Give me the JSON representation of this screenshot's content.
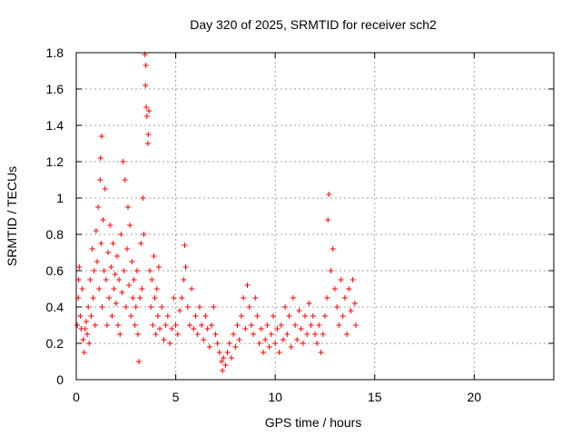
{
  "chart_data": {
    "type": "scatter",
    "title": "Day 320 of 2025, SRMTID for receiver sch2",
    "xlabel": "GPS time / hours",
    "ylabel": "SRMTID / TECUs",
    "xlim": [
      0,
      24
    ],
    "ylim": [
      0,
      1.8
    ],
    "x_ticks": [
      "0",
      "5",
      "10",
      "15",
      "20"
    ],
    "y_ticks": [
      "0",
      "0.2",
      "0.4",
      "0.6",
      "0.8",
      "1",
      "1.2",
      "1.4",
      "1.6",
      "1.8"
    ],
    "grid": true,
    "marker": "+",
    "color": "#ff0000",
    "series": [
      {
        "name": "SRMTID",
        "points": [
          [
            0.05,
            0.3
          ],
          [
            0.1,
            0.45
          ],
          [
            0.12,
            0.55
          ],
          [
            0.15,
            0.62
          ],
          [
            0.2,
            0.35
          ],
          [
            0.25,
            0.28
          ],
          [
            0.3,
            0.5
          ],
          [
            0.35,
            0.22
          ],
          [
            0.4,
            0.15
          ],
          [
            0.45,
            0.28
          ],
          [
            0.5,
            0.32
          ],
          [
            0.55,
            0.25
          ],
          [
            0.6,
            0.4
          ],
          [
            0.65,
            0.2
          ],
          [
            0.7,
            0.55
          ],
          [
            0.75,
            0.35
          ],
          [
            0.8,
            0.72
          ],
          [
            0.85,
            0.45
          ],
          [
            0.9,
            0.6
          ],
          [
            0.95,
            0.3
          ],
          [
            1.0,
            0.82
          ],
          [
            1.05,
            0.65
          ],
          [
            1.1,
            0.95
          ],
          [
            1.15,
            0.5
          ],
          [
            1.2,
            1.1
          ],
          [
            1.22,
            1.22
          ],
          [
            1.25,
            0.75
          ],
          [
            1.28,
            1.34
          ],
          [
            1.3,
            0.4
          ],
          [
            1.35,
            0.88
          ],
          [
            1.4,
            0.6
          ],
          [
            1.45,
            1.05
          ],
          [
            1.5,
            0.55
          ],
          [
            1.55,
            0.3
          ],
          [
            1.6,
            0.7
          ],
          [
            1.65,
            0.45
          ],
          [
            1.7,
            0.85
          ],
          [
            1.75,
            0.62
          ],
          [
            1.8,
            0.35
          ],
          [
            1.85,
            0.75
          ],
          [
            1.9,
            0.5
          ],
          [
            1.95,
            0.58
          ],
          [
            2.0,
            0.42
          ],
          [
            2.05,
            0.68
          ],
          [
            2.1,
            0.3
          ],
          [
            2.15,
            0.55
          ],
          [
            2.2,
            0.25
          ],
          [
            2.25,
            0.8
          ],
          [
            2.3,
            0.48
          ],
          [
            2.35,
            1.2
          ],
          [
            2.4,
            0.6
          ],
          [
            2.45,
            1.1
          ],
          [
            2.5,
            0.4
          ],
          [
            2.55,
            0.72
          ],
          [
            2.6,
            0.95
          ],
          [
            2.65,
            0.52
          ],
          [
            2.7,
            0.85
          ],
          [
            2.75,
            0.35
          ],
          [
            2.8,
            0.65
          ],
          [
            2.85,
            0.45
          ],
          [
            2.9,
            0.55
          ],
          [
            2.95,
            0.3
          ],
          [
            3.0,
            0.4
          ],
          [
            3.05,
            0.6
          ],
          [
            3.1,
            0.25
          ],
          [
            3.15,
            0.1
          ],
          [
            3.2,
            0.45
          ],
          [
            3.25,
            0.75
          ],
          [
            3.3,
            0.5
          ],
          [
            3.35,
            1.0
          ],
          [
            3.4,
            0.8
          ],
          [
            3.45,
            1.79
          ],
          [
            3.48,
            1.62
          ],
          [
            3.5,
            1.73
          ],
          [
            3.52,
            1.5
          ],
          [
            3.55,
            1.45
          ],
          [
            3.6,
            1.3
          ],
          [
            3.62,
            1.35
          ],
          [
            3.65,
            1.48
          ],
          [
            3.7,
            0.6
          ],
          [
            3.75,
            0.4
          ],
          [
            3.8,
            0.55
          ],
          [
            3.85,
            0.3
          ],
          [
            3.9,
            0.68
          ],
          [
            3.95,
            0.45
          ],
          [
            4.0,
            0.25
          ],
          [
            4.05,
            0.5
          ],
          [
            4.1,
            0.35
          ],
          [
            4.15,
            0.62
          ],
          [
            4.2,
            0.28
          ],
          [
            4.3,
            0.4
          ],
          [
            4.4,
            0.22
          ],
          [
            4.5,
            0.3
          ],
          [
            4.6,
            0.35
          ],
          [
            4.7,
            0.2
          ],
          [
            4.8,
            0.28
          ],
          [
            4.9,
            0.45
          ],
          [
            5.0,
            0.3
          ],
          [
            5.1,
            0.25
          ],
          [
            5.2,
            0.38
          ],
          [
            5.3,
            0.45
          ],
          [
            5.4,
            0.55
          ],
          [
            5.45,
            0.74
          ],
          [
            5.5,
            0.62
          ],
          [
            5.6,
            0.4
          ],
          [
            5.7,
            0.3
          ],
          [
            5.8,
            0.5
          ],
          [
            5.9,
            0.28
          ],
          [
            6.0,
            0.35
          ],
          [
            6.1,
            0.25
          ],
          [
            6.2,
            0.4
          ],
          [
            6.3,
            0.3
          ],
          [
            6.4,
            0.22
          ],
          [
            6.5,
            0.35
          ],
          [
            6.6,
            0.28
          ],
          [
            6.7,
            0.18
          ],
          [
            6.8,
            0.3
          ],
          [
            6.9,
            0.4
          ],
          [
            7.0,
            0.25
          ],
          [
            7.1,
            0.2
          ],
          [
            7.2,
            0.15
          ],
          [
            7.3,
            0.1
          ],
          [
            7.35,
            0.05
          ],
          [
            7.4,
            0.12
          ],
          [
            7.5,
            0.08
          ],
          [
            7.6,
            0.15
          ],
          [
            7.7,
            0.2
          ],
          [
            7.8,
            0.12
          ],
          [
            7.9,
            0.25
          ],
          [
            8.0,
            0.18
          ],
          [
            8.1,
            0.3
          ],
          [
            8.2,
            0.22
          ],
          [
            8.3,
            0.35
          ],
          [
            8.4,
            0.45
          ],
          [
            8.5,
            0.28
          ],
          [
            8.6,
            0.52
          ],
          [
            8.7,
            0.4
          ],
          [
            8.8,
            0.3
          ],
          [
            8.9,
            0.25
          ],
          [
            9.0,
            0.45
          ],
          [
            9.1,
            0.35
          ],
          [
            9.2,
            0.2
          ],
          [
            9.3,
            0.28
          ],
          [
            9.4,
            0.15
          ],
          [
            9.5,
            0.22
          ],
          [
            9.6,
            0.3
          ],
          [
            9.7,
            0.18
          ],
          [
            9.8,
            0.25
          ],
          [
            9.9,
            0.35
          ],
          [
            10.0,
            0.2
          ],
          [
            10.1,
            0.28
          ],
          [
            10.2,
            0.15
          ],
          [
            10.3,
            0.3
          ],
          [
            10.4,
            0.22
          ],
          [
            10.5,
            0.4
          ],
          [
            10.6,
            0.25
          ],
          [
            10.7,
            0.35
          ],
          [
            10.8,
            0.18
          ],
          [
            10.9,
            0.45
          ],
          [
            11.0,
            0.3
          ],
          [
            11.1,
            0.22
          ],
          [
            11.2,
            0.38
          ],
          [
            11.3,
            0.28
          ],
          [
            11.4,
            0.2
          ],
          [
            11.5,
            0.35
          ],
          [
            11.6,
            0.25
          ],
          [
            11.7,
            0.42
          ],
          [
            11.8,
            0.3
          ],
          [
            11.9,
            0.35
          ],
          [
            12.0,
            0.25
          ],
          [
            12.1,
            0.2
          ],
          [
            12.2,
            0.3
          ],
          [
            12.3,
            0.15
          ],
          [
            12.4,
            0.25
          ],
          [
            12.5,
            0.35
          ],
          [
            12.6,
            0.45
          ],
          [
            12.65,
            0.88
          ],
          [
            12.7,
            1.02
          ],
          [
            12.8,
            0.6
          ],
          [
            12.9,
            0.72
          ],
          [
            13.0,
            0.5
          ],
          [
            13.1,
            0.4
          ],
          [
            13.2,
            0.3
          ],
          [
            13.3,
            0.55
          ],
          [
            13.4,
            0.35
          ],
          [
            13.5,
            0.45
          ],
          [
            13.6,
            0.25
          ],
          [
            13.7,
            0.5
          ],
          [
            13.8,
            0.38
          ],
          [
            13.9,
            0.55
          ],
          [
            14.0,
            0.42
          ],
          [
            14.05,
            0.3
          ]
        ]
      }
    ]
  }
}
